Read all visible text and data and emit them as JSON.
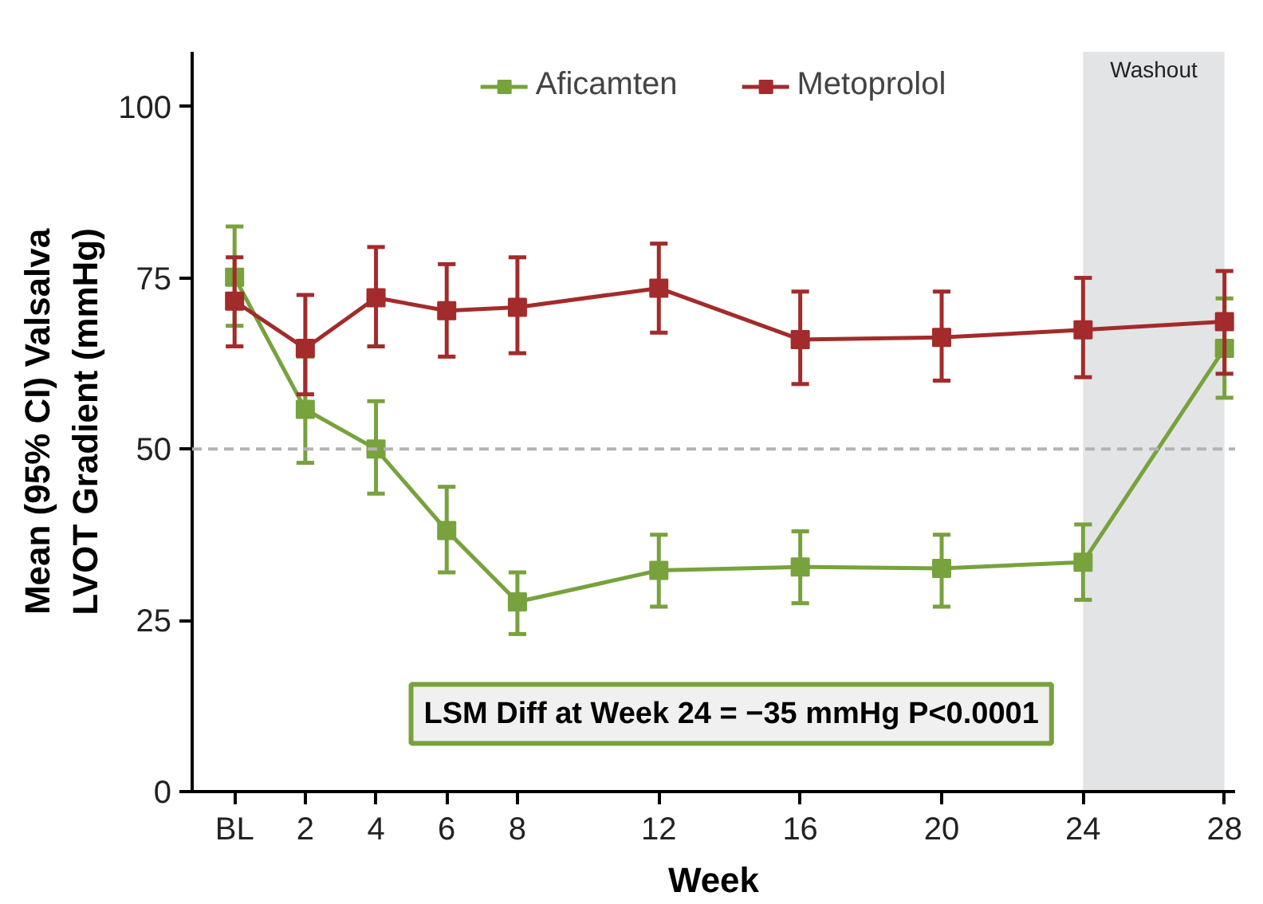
{
  "chart_data": {
    "type": "line",
    "xlabel": "Week",
    "ylabel": "Mean (95% CI) Valsalva\nLVOT Gradient (mmHg)",
    "x": [
      0,
      2,
      4,
      6,
      8,
      12,
      16,
      20,
      24,
      28
    ],
    "series": [
      {
        "name": "Aficamten",
        "color": "#77a23d",
        "values": [
          75.1,
          55.8,
          50,
          38.1,
          27.7,
          32.3,
          32.8,
          32.6,
          33.5,
          64.7
        ],
        "errors": [
          [
            68,
            82.5
          ],
          [
            48,
            63.5
          ],
          [
            43.5,
            57
          ],
          [
            32,
            44.5
          ],
          [
            23,
            32
          ],
          [
            27,
            37.5
          ],
          [
            27.5,
            38
          ],
          [
            27,
            37.5
          ],
          [
            28,
            39
          ],
          [
            57.5,
            72
          ]
        ]
      },
      {
        "name": "Metoprolol",
        "color": "#a32b2b",
        "values": [
          71.6,
          64.7,
          72.1,
          70.2,
          70.7,
          73.5,
          66,
          66.3,
          67.4,
          68.6
        ],
        "errors": [
          [
            65,
            78
          ],
          [
            58,
            72.5
          ],
          [
            65,
            79.5
          ],
          [
            63.5,
            77
          ],
          [
            64,
            78
          ],
          [
            67,
            80
          ],
          [
            59.5,
            73
          ],
          [
            60,
            73
          ],
          [
            60.5,
            75
          ],
          [
            61,
            76
          ]
        ]
      }
    ],
    "xlim": [
      -1.2,
      28.3
    ],
    "xticks": [
      {
        "value": 0,
        "label": "BL"
      },
      2,
      4,
      6,
      8,
      12,
      16,
      20,
      24,
      28
    ],
    "ylim": [
      0,
      108
    ],
    "yticks": [
      0,
      25,
      50,
      75,
      100
    ],
    "ref_lines": [
      {
        "axis": "y",
        "value": 50,
        "color": "#b3b3b3",
        "line_style": "dashed"
      }
    ],
    "bands": [
      {
        "axis": "x",
        "from": 24,
        "to": 28,
        "label": "Washout",
        "color": "#e3e4e6"
      }
    ],
    "annotations": [
      "LSM Diff at Week 24 = −35 mmHg P<0.0001"
    ],
    "marker": "square",
    "line_style": "solid",
    "grid": false,
    "legend": "top"
  }
}
